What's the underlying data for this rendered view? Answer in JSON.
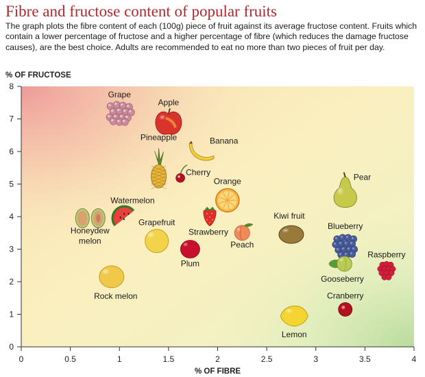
{
  "title": "Fibre and fructose content of popular fruits",
  "description": "The graph plots the fibre content of each (100g) piece of fruit against its average fructose content. Fruits which contain a lower percentage of fructose and a higher percentage of fibre (which reduces the damage fructose causes), are the best choice. Adults are recommended to eat no more than two pieces of fruit per day.",
  "chart_data": {
    "type": "scatter",
    "xlabel": "% OF FIBRE",
    "ylabel": "% OF FRUCTOSE",
    "xlim": [
      0,
      4
    ],
    "ylim": [
      0,
      8
    ],
    "xticks": [
      "0",
      "0.5",
      "1",
      "1.5",
      "2",
      "2.5",
      "3",
      "3.5",
      "4"
    ],
    "yticks": [
      "0",
      "1",
      "2",
      "3",
      "4",
      "5",
      "6",
      "7",
      "8"
    ],
    "grid": false,
    "background": "gradient: red (top-left, high fructose/low fibre) to yellow to green (bottom-right, low fructose/high fibre)",
    "points": [
      {
        "label": "Grape",
        "x": 1.0,
        "y": 7.2,
        "icon": "grape-icon",
        "color": "#c98a9a"
      },
      {
        "label": "Apple",
        "x": 1.5,
        "y": 6.9,
        "icon": "apple-icon",
        "color": "#d9342b"
      },
      {
        "label": "Pineapple",
        "x": 1.4,
        "y": 5.3,
        "icon": "pineapple-icon",
        "color": "#e6b53a"
      },
      {
        "label": "Banana",
        "x": 1.85,
        "y": 5.95,
        "icon": "banana-icon",
        "color": "#f2d03b"
      },
      {
        "label": "Cherry",
        "x": 1.62,
        "y": 5.25,
        "icon": "cherry-icon",
        "color": "#b3121e"
      },
      {
        "label": "Orange",
        "x": 2.1,
        "y": 4.5,
        "icon": "orange-icon",
        "color": "#f5a623"
      },
      {
        "label": "Pear",
        "x": 3.3,
        "y": 4.75,
        "icon": "pear-icon",
        "color": "#c7c94a"
      },
      {
        "label": "Watermelon",
        "x": 1.05,
        "y": 3.95,
        "icon": "watermelon-icon",
        "color": "#e8413d"
      },
      {
        "label": "Honeydew melon",
        "x": 0.7,
        "y": 3.95,
        "icon": "honeydew-icon",
        "color": "#d9a070"
      },
      {
        "label": "Grapefruit",
        "x": 1.38,
        "y": 3.25,
        "icon": "grapefruit-icon",
        "color": "#f3d34a"
      },
      {
        "label": "Strawberry",
        "x": 1.92,
        "y": 4.05,
        "icon": "strawberry-icon",
        "color": "#e22b2b"
      },
      {
        "label": "Peach",
        "x": 2.25,
        "y": 3.5,
        "icon": "peach-icon",
        "color": "#f08a5a"
      },
      {
        "label": "Kiwi fruit",
        "x": 2.75,
        "y": 3.45,
        "icon": "kiwi-icon",
        "color": "#9a7a3a"
      },
      {
        "label": "Blueberry",
        "x": 3.3,
        "y": 3.1,
        "icon": "blueberry-icon",
        "color": "#4a5c9a"
      },
      {
        "label": "Plum",
        "x": 1.72,
        "y": 3.0,
        "icon": "plum-icon",
        "color": "#c8102e"
      },
      {
        "label": "Gooseberry",
        "x": 3.27,
        "y": 2.55,
        "icon": "gooseberry-icon",
        "color": "#b8cc55"
      },
      {
        "label": "Raspberry",
        "x": 3.72,
        "y": 2.35,
        "icon": "raspberry-icon",
        "color": "#d11f3c"
      },
      {
        "label": "Rock melon",
        "x": 0.92,
        "y": 2.15,
        "icon": "rockmelon-icon",
        "color": "#f0c94a"
      },
      {
        "label": "Cranberry",
        "x": 3.3,
        "y": 1.15,
        "icon": "cranberry-icon",
        "color": "#b3121e"
      },
      {
        "label": "Lemon",
        "x": 2.78,
        "y": 0.95,
        "icon": "lemon-icon",
        "color": "#f3d430"
      }
    ]
  }
}
